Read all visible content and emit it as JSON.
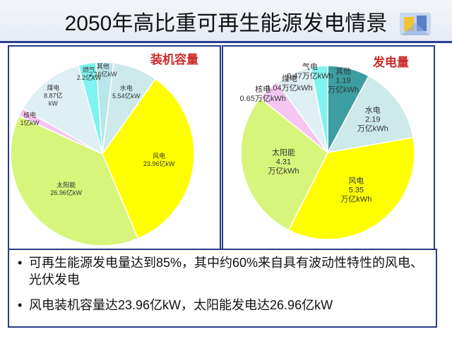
{
  "title": "2050年高比重可再生能源发电情景",
  "chart_data": [
    {
      "type": "pie",
      "title": "装机容量",
      "unit": "亿kW",
      "slices": [
        {
          "name": "其他",
          "value": 2.16,
          "label_lines": [
            "其他",
            "2.16亿kW"
          ],
          "color": "#b9e6ea"
        },
        {
          "name": "水电",
          "value": 5.54,
          "label_lines": [
            "水电",
            "5.54亿kW"
          ],
          "color": "#cde9ea"
        },
        {
          "name": "风电",
          "value": 23.96,
          "label_lines": [
            "风电",
            "23.96亿kW"
          ],
          "color": "#ffff00"
        },
        {
          "name": "太阳能",
          "value": 26.96,
          "label_lines": [
            "太阳能",
            "26.96亿kW"
          ],
          "color": "#d7f57a"
        },
        {
          "name": "核电",
          "value": 1,
          "label_lines": [
            "核电",
            "1亿kW"
          ],
          "color": "#f5c6f1"
        },
        {
          "name": "煤电",
          "value": 8.87,
          "label_lines": [
            "煤电",
            "8.87亿",
            "kW"
          ],
          "color": "#dff0f4"
        },
        {
          "name": "燃气",
          "value": 2.2,
          "label_lines": [
            "燃气",
            "2.2亿kW"
          ],
          "color": "#7ff3ef"
        }
      ]
    },
    {
      "type": "pie",
      "title": "发电量",
      "unit": "万亿kWh",
      "slices": [
        {
          "name": "其他",
          "value": 1.19,
          "label_lines": [
            "其他",
            "1.19",
            "万亿kWh"
          ],
          "color": "#3c9ea1"
        },
        {
          "name": "水电",
          "value": 2.19,
          "label_lines": [
            "水电",
            "2.19",
            "万亿kWh"
          ],
          "color": "#cde9ea"
        },
        {
          "name": "风电",
          "value": 5.35,
          "label_lines": [
            "风电",
            "5.35",
            "万亿kWh"
          ],
          "color": "#ffff00"
        },
        {
          "name": "太阳能",
          "value": 4.31,
          "label_lines": [
            "太阳能",
            "4.31",
            "万亿kWh"
          ],
          "color": "#d7f57a"
        },
        {
          "name": "核电",
          "value": 0.65,
          "label_lines": [
            "核电",
            "0.65万亿kWh"
          ],
          "color": "#f5c6f1"
        },
        {
          "name": "煤电",
          "value": 1.04,
          "label_lines": [
            "煤电",
            "1.04万亿kWh"
          ],
          "color": "#dff0f4"
        },
        {
          "name": "气电",
          "value": 0.47,
          "label_lines": [
            "气电",
            "0.47万亿kWh"
          ],
          "color": "#7ff3ef"
        }
      ]
    }
  ],
  "bullets": [
    "可再生能源发电量达到85%，其中约60%来自具有波动性特性的风电、光伏发电",
    "风电装机容量达23.96亿kW，太阳能发电达26.96亿kW"
  ],
  "bullet_symbol": "•"
}
